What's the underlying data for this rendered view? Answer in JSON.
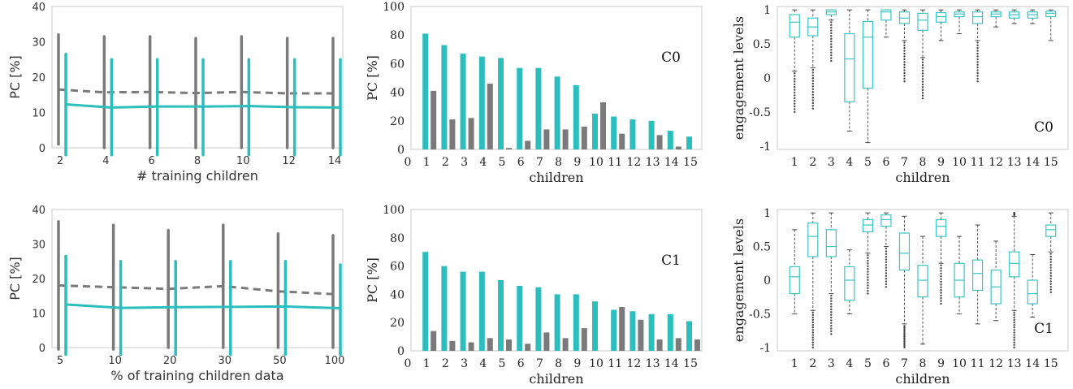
{
  "colors": {
    "teal": "#2cbdbd",
    "gray": "#7a7a7a",
    "box": "#3cc4c4"
  },
  "chart_data": [
    {
      "type": "line",
      "xlabel": "# training children",
      "ylabel": "PC [%]",
      "x": [
        "2",
        "4",
        "6",
        "8",
        "10",
        "12",
        "14"
      ],
      "ylim": [
        0,
        40
      ],
      "yticks": [
        "0",
        "10",
        "20",
        "30",
        "40"
      ],
      "series": [
        {
          "style": "dashed",
          "color": "gray",
          "mean": [
            16.5,
            15.7,
            15.8,
            15.5,
            15.8,
            15.4,
            15.4
          ],
          "low": [
            1,
            0,
            0,
            0,
            0,
            0,
            0
          ],
          "high": [
            32,
            31.5,
            31.5,
            31,
            31.5,
            31,
            31
          ]
        },
        {
          "style": "solid",
          "color": "teal",
          "mean": [
            12.3,
            11.4,
            11.7,
            11.7,
            11.8,
            11.5,
            11.4
          ],
          "low": [
            -2,
            -2,
            -2,
            -2,
            -2,
            -2,
            -2
          ],
          "high": [
            26.5,
            25,
            25,
            25,
            25,
            25,
            25
          ]
        }
      ]
    },
    {
      "type": "bar",
      "xlabel": "children",
      "ylabel": "PC [%]",
      "annotation": "C0",
      "categories": [
        "1",
        "2",
        "3",
        "4",
        "5",
        "6",
        "7",
        "8",
        "9",
        "10",
        "11",
        "12",
        "13",
        "14",
        "15"
      ],
      "xticks": [
        "0",
        "1",
        "2",
        "3",
        "4",
        "5",
        "6",
        "7",
        "8",
        "9",
        "10",
        "11",
        "12",
        "13",
        "14",
        "15"
      ],
      "ylim": [
        0,
        100
      ],
      "yticks": [
        "0",
        "20",
        "40",
        "60",
        "80",
        "100"
      ],
      "series": [
        {
          "color": "teal",
          "values": [
            81,
            73,
            67,
            65,
            64,
            57,
            57,
            51,
            45,
            25,
            23,
            21,
            20,
            13,
            9
          ]
        },
        {
          "color": "gray",
          "values": [
            41,
            21,
            22,
            46,
            1,
            6,
            14,
            14,
            16,
            33,
            11,
            0,
            10,
            2,
            0
          ]
        }
      ]
    },
    {
      "type": "box",
      "xlabel": "children",
      "ylabel": "engagement levels",
      "annotation": "C0",
      "categories": [
        "1",
        "2",
        "3",
        "4",
        "5",
        "6",
        "7",
        "8",
        "9",
        "10",
        "11",
        "12",
        "13",
        "14",
        "15"
      ],
      "ylim": [
        -1.05,
        1.05
      ],
      "yticks": [
        "-1",
        "-0.5",
        "0",
        "0.5",
        "1"
      ],
      "boxes": [
        {
          "q1": 0.6,
          "med": 0.82,
          "q3": 0.93,
          "lo": 0.1,
          "hi": 1.0,
          "outliers": "low"
        },
        {
          "q1": 0.62,
          "med": 0.75,
          "q3": 0.88,
          "lo": 0.15,
          "hi": 1.0,
          "outliers": "low"
        },
        {
          "q1": 0.93,
          "med": 0.97,
          "q3": 1.0,
          "lo": 0.85,
          "hi": 1.0,
          "outliers": "low"
        },
        {
          "q1": -0.35,
          "med": 0.28,
          "q3": 0.65,
          "lo": -0.78,
          "hi": 1.0,
          "outliers": "none"
        },
        {
          "q1": -0.15,
          "med": 0.6,
          "q3": 0.83,
          "lo": -0.95,
          "hi": 1.0,
          "outliers": "none"
        },
        {
          "q1": 0.85,
          "med": 0.97,
          "q3": 1.0,
          "lo": 0.6,
          "hi": 1.0,
          "outliers": "none"
        },
        {
          "q1": 0.8,
          "med": 0.88,
          "q3": 0.97,
          "lo": 0.55,
          "hi": 1.0,
          "outliers": "low"
        },
        {
          "q1": 0.7,
          "med": 0.85,
          "q3": 0.95,
          "lo": 0.3,
          "hi": 1.0,
          "outliers": "low"
        },
        {
          "q1": 0.82,
          "med": 0.9,
          "q3": 0.96,
          "lo": 0.55,
          "hi": 1.0,
          "outliers": "none"
        },
        {
          "q1": 0.9,
          "med": 0.94,
          "q3": 0.97,
          "lo": 0.65,
          "hi": 1.0,
          "outliers": "none"
        },
        {
          "q1": 0.8,
          "med": 0.9,
          "q3": 0.97,
          "lo": 0.55,
          "hi": 1.0,
          "outliers": "low"
        },
        {
          "q1": 0.9,
          "med": 0.94,
          "q3": 0.97,
          "lo": 0.75,
          "hi": 1.0,
          "outliers": "none"
        },
        {
          "q1": 0.88,
          "med": 0.93,
          "q3": 0.97,
          "lo": 0.8,
          "hi": 1.0,
          "outliers": "none"
        },
        {
          "q1": 0.88,
          "med": 0.93,
          "q3": 0.97,
          "lo": 0.8,
          "hi": 1.0,
          "outliers": "none"
        },
        {
          "q1": 0.9,
          "med": 0.95,
          "q3": 0.98,
          "lo": 0.55,
          "hi": 1.0,
          "outliers": "none"
        }
      ]
    },
    {
      "type": "line",
      "xlabel": "% of training children data",
      "ylabel": "PC [%]",
      "x": [
        "5",
        "10",
        "20",
        "30",
        "50",
        "100"
      ],
      "ylim": [
        0,
        40
      ],
      "yticks": [
        "0",
        "10",
        "20",
        "30",
        "40"
      ],
      "series": [
        {
          "style": "dashed",
          "color": "gray",
          "mean": [
            18,
            17.5,
            17,
            17.8,
            16.3,
            15.5
          ],
          "low": [
            -0.5,
            -0.5,
            0,
            0,
            0,
            0
          ],
          "high": [
            36.5,
            35.5,
            34,
            35.5,
            33,
            32.5
          ]
        },
        {
          "style": "solid",
          "color": "teal",
          "mean": [
            12.5,
            11.5,
            11.7,
            11.8,
            11.9,
            11.4
          ],
          "low": [
            -2,
            -2,
            -2,
            -2,
            -2,
            -2
          ],
          "high": [
            26.5,
            25,
            25,
            25,
            25,
            24
          ]
        }
      ]
    },
    {
      "type": "bar",
      "xlabel": "children",
      "ylabel": "PC [%]",
      "annotation": "C1",
      "categories": [
        "1",
        "2",
        "3",
        "4",
        "5",
        "6",
        "7",
        "8",
        "9",
        "10",
        "11",
        "12",
        "13",
        "14",
        "15"
      ],
      "xticks": [
        "0",
        "1",
        "2",
        "3",
        "4",
        "5",
        "6",
        "7",
        "8",
        "9",
        "10",
        "11",
        "12",
        "13",
        "14",
        "15"
      ],
      "ylim": [
        0,
        100
      ],
      "yticks": [
        "0",
        "20",
        "40",
        "60",
        "80",
        "100"
      ],
      "series": [
        {
          "color": "teal",
          "values": [
            70,
            60,
            56,
            56,
            50,
            46,
            45,
            40,
            40,
            35,
            29,
            28,
            26,
            26,
            21
          ]
        },
        {
          "color": "gray",
          "values": [
            14,
            7,
            6,
            9,
            8,
            5,
            13,
            9,
            16,
            0,
            31,
            22,
            8,
            9,
            8
          ]
        }
      ]
    },
    {
      "type": "box",
      "xlabel": "children",
      "ylabel": "engagement levels",
      "annotation": "C1",
      "categories": [
        "1",
        "2",
        "3",
        "4",
        "5",
        "6",
        "7",
        "8",
        "9",
        "10",
        "11",
        "12",
        "13",
        "14",
        "15"
      ],
      "ylim": [
        -1.05,
        1.05
      ],
      "yticks": [
        "-1",
        "-0.5",
        "0",
        "0.5",
        "1"
      ],
      "boxes": [
        {
          "q1": -0.2,
          "med": 0.05,
          "q3": 0.2,
          "lo": -0.5,
          "hi": 0.75,
          "outliers": "none"
        },
        {
          "q1": 0.35,
          "med": 0.65,
          "q3": 0.85,
          "lo": -0.45,
          "hi": 1.0,
          "outliers": "low"
        },
        {
          "q1": 0.35,
          "med": 0.5,
          "q3": 0.75,
          "lo": -0.2,
          "hi": 1.0,
          "outliers": "low"
        },
        {
          "q1": -0.3,
          "med": 0.0,
          "q3": 0.2,
          "lo": -0.5,
          "hi": 0.45,
          "outliers": "none"
        },
        {
          "q1": 0.72,
          "med": 0.82,
          "q3": 0.9,
          "lo": 0.4,
          "hi": 1.0,
          "outliers": "low"
        },
        {
          "q1": 0.8,
          "med": 0.9,
          "q3": 0.97,
          "lo": 0.5,
          "hi": 1.0,
          "outliers": "low"
        },
        {
          "q1": 0.15,
          "med": 0.4,
          "q3": 0.7,
          "lo": -0.65,
          "hi": 0.95,
          "outliers": "low"
        },
        {
          "q1": -0.25,
          "med": 0.0,
          "q3": 0.22,
          "lo": -0.95,
          "hi": 0.65,
          "outliers": "none"
        },
        {
          "q1": 0.65,
          "med": 0.8,
          "q3": 0.9,
          "lo": 0.25,
          "hi": 1.0,
          "outliers": "low"
        },
        {
          "q1": -0.25,
          "med": 0.0,
          "q3": 0.25,
          "lo": -0.5,
          "hi": 0.65,
          "outliers": "none"
        },
        {
          "q1": -0.15,
          "med": 0.1,
          "q3": 0.3,
          "lo": -0.65,
          "hi": 0.82,
          "outliers": "none"
        },
        {
          "q1": -0.35,
          "med": -0.1,
          "q3": 0.15,
          "lo": -0.6,
          "hi": 0.58,
          "outliers": "none"
        },
        {
          "q1": 0.05,
          "med": 0.25,
          "q3": 0.42,
          "lo": -0.45,
          "hi": 0.95,
          "outliers": "both"
        },
        {
          "q1": -0.35,
          "med": -0.2,
          "q3": 0.0,
          "lo": -0.55,
          "hi": 0.38,
          "outliers": "none"
        },
        {
          "q1": 0.65,
          "med": 0.75,
          "q3": 0.82,
          "lo": 0.42,
          "hi": 1.0,
          "outliers": "low"
        }
      ]
    }
  ]
}
